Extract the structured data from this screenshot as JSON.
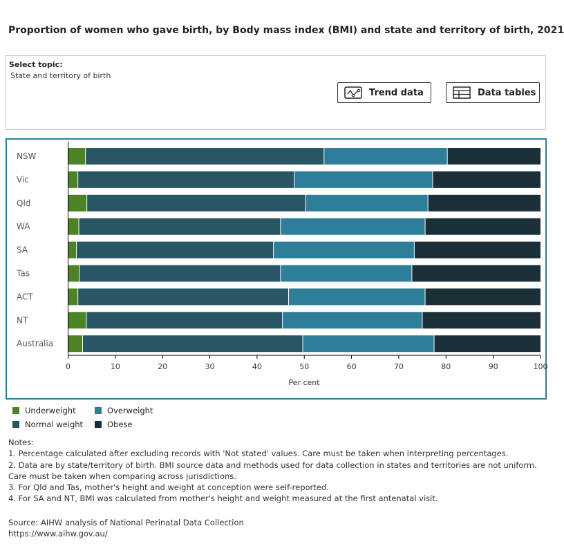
{
  "title": "Proportion of women who gave birth, by Body mass index (BMI) and state and territory of birth, 2021",
  "topic": {
    "label": "Select topic:",
    "value": "State and territory of birth"
  },
  "buttons": {
    "trend": "Trend data",
    "tables": "Data tables"
  },
  "chart_data": {
    "type": "bar",
    "orientation": "horizontal",
    "stacked": true,
    "categories": [
      "NSW",
      "Vic",
      "Qld",
      "WA",
      "SA",
      "Tas",
      "ACT",
      "NT",
      "Australia"
    ],
    "series": [
      {
        "name": "Underweight",
        "color": "#4e8227",
        "values": [
          3.6,
          2.0,
          3.9,
          2.2,
          1.7,
          2.3,
          2.0,
          3.8,
          3.0
        ]
      },
      {
        "name": "Normal weight",
        "color": "#285665",
        "values": [
          50.5,
          45.8,
          46.3,
          42.7,
          41.7,
          42.6,
          44.6,
          41.5,
          46.6
        ]
      },
      {
        "name": "Overweight",
        "color": "#2e7e9a",
        "values": [
          26.1,
          29.3,
          25.9,
          30.6,
          29.8,
          27.8,
          28.9,
          29.6,
          27.8
        ]
      },
      {
        "name": "Obese",
        "color": "#1b2f38",
        "values": [
          19.8,
          22.9,
          23.9,
          24.5,
          26.8,
          27.3,
          24.5,
          25.1,
          22.6
        ]
      }
    ],
    "xlabel": "Per cent",
    "xlim": [
      0,
      100
    ],
    "xticks": [
      "0",
      "10",
      "20",
      "30",
      "40",
      "50",
      "60",
      "70",
      "80",
      "90",
      "100"
    ],
    "legend_position": "bottom-left",
    "grid": false
  },
  "notes": {
    "heading": "Notes:",
    "items": [
      "1. Percentage calculated after excluding records with 'Not stated' values. Care must be taken when interpreting percentages.",
      "2. Data are by state/territory of birth. BMI source data and methods used for data collection in states and territories are not uniform.",
      "Care must be taken when comparing across jurisdictions.",
      "3. For Qld and Tas, mother's height and weight at conception were self-reported.",
      "4. For SA and NT, BMI was calculated from mother's height and weight measured at the first antenatal visit."
    ]
  },
  "source": {
    "text": "Source: AIHW analysis of National Perinatal Data Collection",
    "url": "https://www.aihw.gov.au/"
  }
}
